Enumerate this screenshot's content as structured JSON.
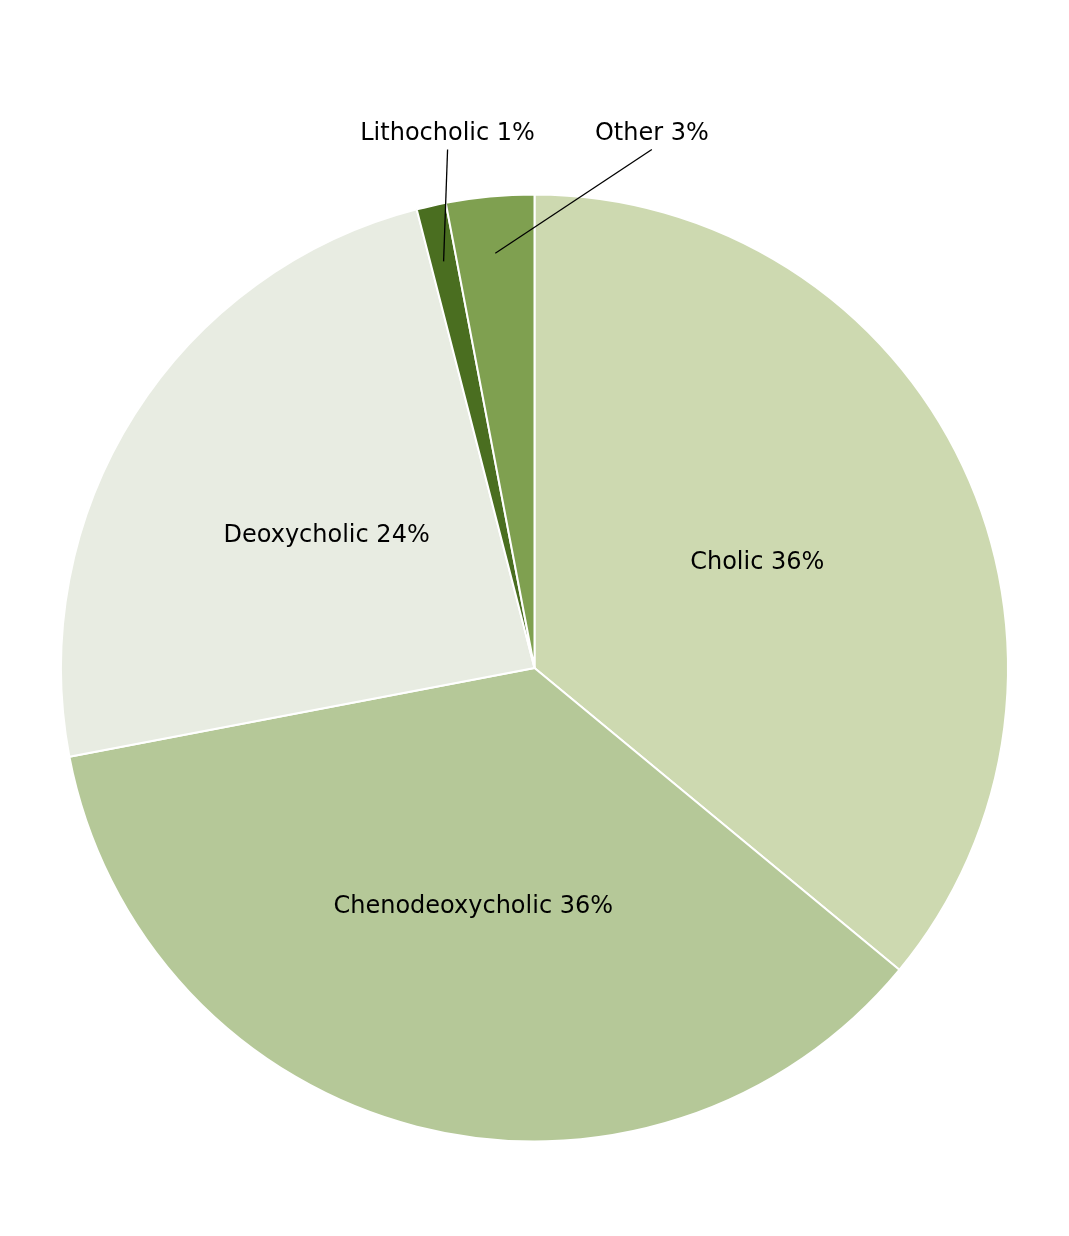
{
  "chart_data": {
    "type": "pie",
    "categories": [
      "Cholic 36%",
      "Chenodeoxycholic 36%",
      "Deoxycholic 24%",
      "Lithocholic 1%",
      "Other 3%"
    ],
    "values": [
      36,
      36,
      24,
      1,
      3
    ],
    "colors": [
      "#cdd9b0",
      "#b5c898",
      "#e8ece2",
      "#4a6e20",
      "#7fa050"
    ]
  }
}
